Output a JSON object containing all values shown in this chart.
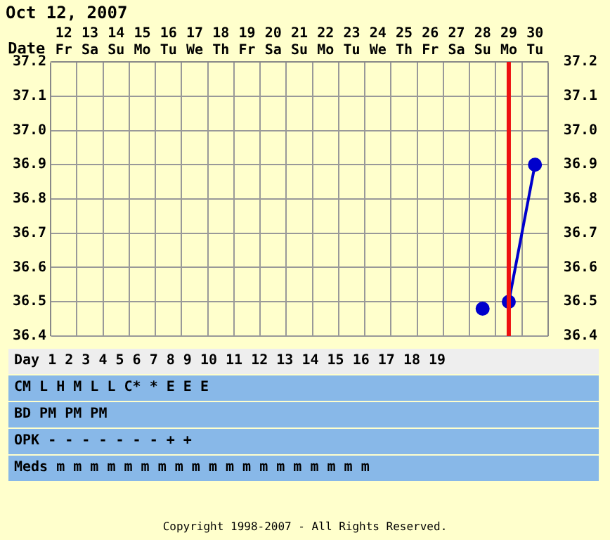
{
  "chart_data": {
    "type": "line",
    "title": "Oct 12, 2007",
    "xlabel": "Date",
    "categories": [
      "12 Fr",
      "13 Sa",
      "14 Su",
      "15 Mo",
      "16 Tu",
      "17 We",
      "18 Th",
      "19 Fr",
      "20 Sa",
      "21 Su",
      "22 Mo",
      "23 Tu",
      "24 We",
      "25 Th",
      "26 Fr",
      "27 Sa",
      "28 Su",
      "29 Mo",
      "30 Tu"
    ],
    "series": [
      {
        "type": "scatter",
        "color": "#0000cc",
        "values": [
          null,
          null,
          null,
          null,
          null,
          null,
          null,
          null,
          null,
          null,
          null,
          null,
          null,
          null,
          null,
          null,
          36.48,
          null,
          null
        ]
      },
      {
        "color": "#0000cc",
        "values": [
          null,
          null,
          null,
          null,
          null,
          null,
          null,
          null,
          null,
          null,
          null,
          null,
          null,
          null,
          null,
          null,
          null,
          36.5,
          36.9
        ]
      }
    ],
    "ylim": [
      36.4,
      37.2
    ],
    "yticks": [
      36.4,
      36.5,
      36.6,
      36.7,
      36.8,
      36.9,
      {
        "value": 37,
        "label": "37.0"
      },
      37.1,
      37.2
    ],
    "y2lim": [
      36.4,
      37.2
    ],
    "y2ticks": [
      36.4,
      36.5,
      36.6,
      36.7,
      36.8,
      36.9,
      {
        "value": 37,
        "label": "37.0"
      },
      37.1,
      37.2
    ],
    "grid": true,
    "marker": "circle",
    "ref_lines": [
      {
        "axis": "x",
        "value": "29 Mo",
        "color": "#ee1111"
      }
    ],
    "annotations": [
      "Day 1 2 3 4 5 6 7 8 9 10 11 12 13 14 15 16 17 18 19",
      "CM L H M L L C* * E E E",
      "BD PM PM PM",
      "OPK - - - - - - - + +",
      "Meds m m m m m m m m m m m m m m m m m m m",
      "Copyright 1998-2007 - All Rights Reserved."
    ]
  }
}
